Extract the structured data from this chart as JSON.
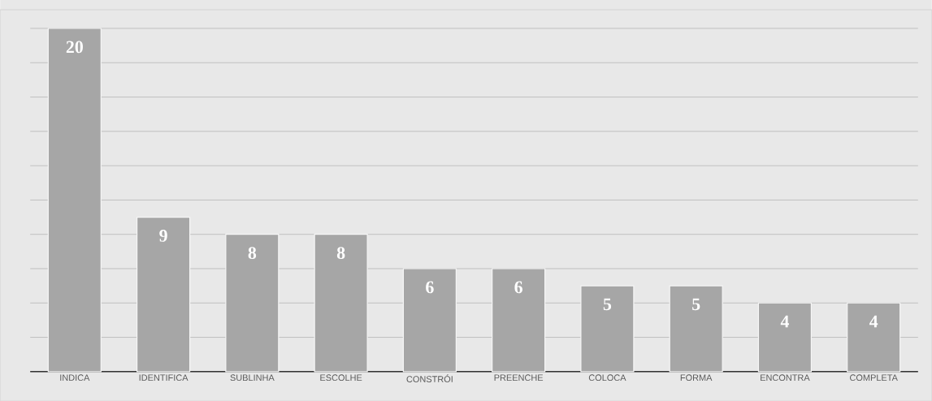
{
  "chart_data": {
    "type": "bar",
    "categories": [
      "INDICA",
      "IDENTIFICA",
      "SUBLINHA",
      "ESCOLHE",
      "CONSTRÓI",
      "PREENCHE",
      "COLOCA",
      "FORMA",
      "ENCONTRA",
      "COMPLETA"
    ],
    "values": [
      20,
      9,
      8,
      8,
      6,
      6,
      5,
      5,
      4,
      4
    ],
    "color": "#a6a6a6",
    "tick_labels": "x",
    "grid": "y",
    "data_labels": true
  }
}
